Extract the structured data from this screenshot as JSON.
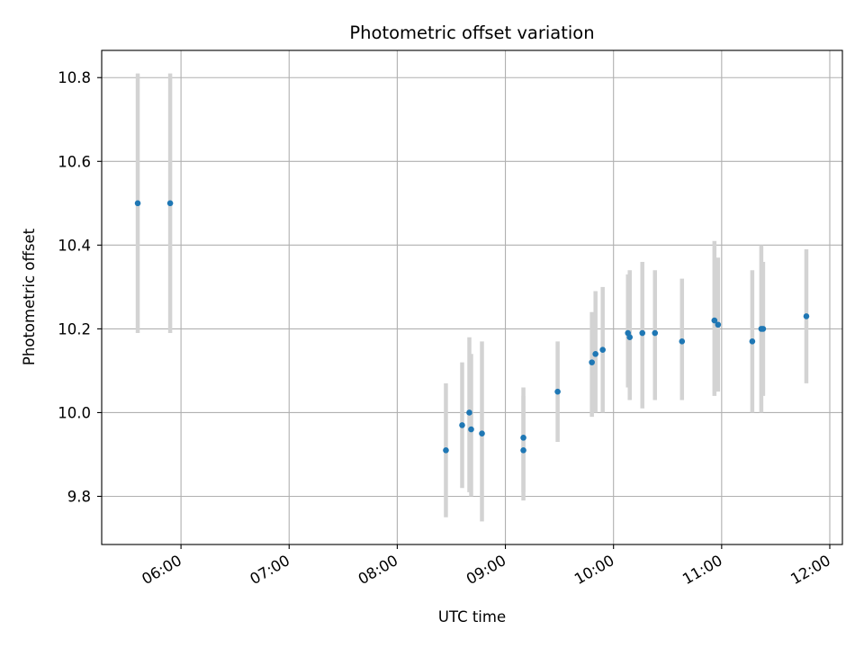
{
  "chart_data": {
    "type": "scatter",
    "title": "Photometric offset variation",
    "xlabel": "UTC time",
    "ylabel": "Photometric offset",
    "x_unit": "UTC time (HH:MM)",
    "xlim": [
      "05:16",
      "12:07"
    ],
    "ylim": [
      9.685,
      10.865
    ],
    "xticks": [
      "06:00",
      "07:00",
      "08:00",
      "09:00",
      "10:00",
      "11:00",
      "12:00"
    ],
    "yticks": [
      9.8,
      10.0,
      10.2,
      10.4,
      10.6,
      10.8
    ],
    "ytick_labels": [
      "9.8",
      "10.0",
      "10.2",
      "10.4",
      "10.6",
      "10.8"
    ],
    "grid": true,
    "legend": false,
    "marker_color": "#1f77b4",
    "errorbar_color": "#d3d3d3",
    "series": [
      {
        "points": [
          {
            "x": "05:36",
            "y": 10.5,
            "ylo": 10.19,
            "yhi": 10.81
          },
          {
            "x": "05:54",
            "y": 10.5,
            "ylo": 10.19,
            "yhi": 10.81
          },
          {
            "x": "08:27",
            "y": 9.91,
            "ylo": 9.75,
            "yhi": 10.07
          },
          {
            "x": "08:36",
            "y": 9.97,
            "ylo": 9.82,
            "yhi": 10.12
          },
          {
            "x": "08:40",
            "y": 10.0,
            "ylo": 9.81,
            "yhi": 10.18
          },
          {
            "x": "08:41",
            "y": 9.96,
            "ylo": 9.8,
            "yhi": 10.14
          },
          {
            "x": "08:47",
            "y": 9.95,
            "ylo": 9.74,
            "yhi": 10.17
          },
          {
            "x": "09:10",
            "y": 9.94,
            "ylo": 9.81,
            "yhi": 10.06
          },
          {
            "x": "09:10",
            "y": 9.91,
            "ylo": 9.79,
            "yhi": 10.04
          },
          {
            "x": "09:29",
            "y": 10.05,
            "ylo": 9.93,
            "yhi": 10.17
          },
          {
            "x": "09:48",
            "y": 10.12,
            "ylo": 9.99,
            "yhi": 10.24
          },
          {
            "x": "09:50",
            "y": 10.14,
            "ylo": 10.0,
            "yhi": 10.29
          },
          {
            "x": "09:54",
            "y": 10.15,
            "ylo": 10.0,
            "yhi": 10.3
          },
          {
            "x": "10:08",
            "y": 10.19,
            "ylo": 10.06,
            "yhi": 10.33
          },
          {
            "x": "10:09",
            "y": 10.18,
            "ylo": 10.03,
            "yhi": 10.34
          },
          {
            "x": "10:16",
            "y": 10.19,
            "ylo": 10.01,
            "yhi": 10.36
          },
          {
            "x": "10:23",
            "y": 10.19,
            "ylo": 10.03,
            "yhi": 10.34
          },
          {
            "x": "10:38",
            "y": 10.17,
            "ylo": 10.03,
            "yhi": 10.32
          },
          {
            "x": "10:56",
            "y": 10.22,
            "ylo": 10.04,
            "yhi": 10.41
          },
          {
            "x": "10:58",
            "y": 10.21,
            "ylo": 10.05,
            "yhi": 10.37
          },
          {
            "x": "11:17",
            "y": 10.17,
            "ylo": 10.0,
            "yhi": 10.34
          },
          {
            "x": "11:22",
            "y": 10.2,
            "ylo": 10.0,
            "yhi": 10.4
          },
          {
            "x": "11:23",
            "y": 10.2,
            "ylo": 10.04,
            "yhi": 10.36
          },
          {
            "x": "11:47",
            "y": 10.23,
            "ylo": 10.07,
            "yhi": 10.39
          }
        ]
      }
    ]
  }
}
